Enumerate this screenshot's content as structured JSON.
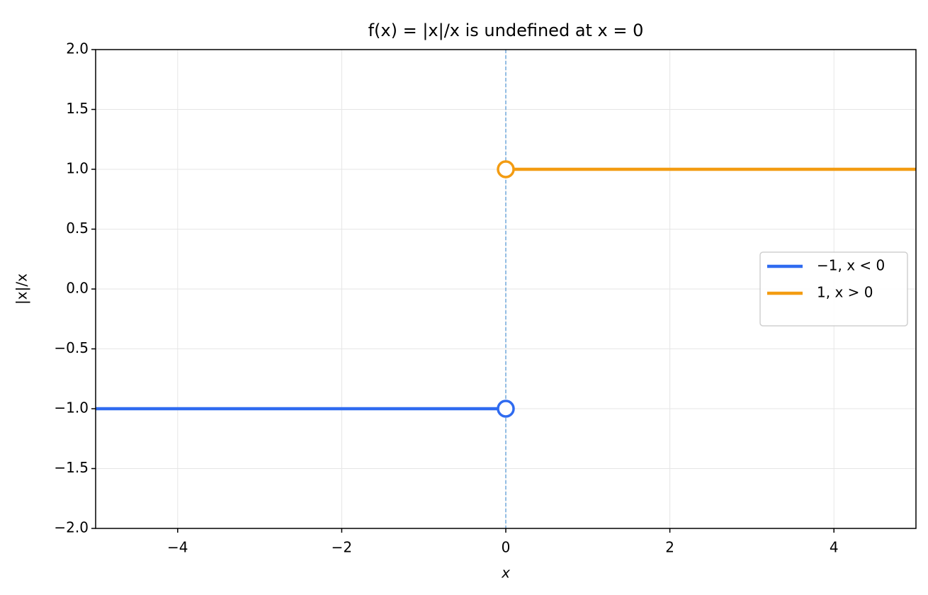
{
  "chart_data": {
    "type": "line",
    "title": "f(x) = |x|/x is undefined at x = 0",
    "x_label": "x",
    "y_label": "|x|/x",
    "series": [
      {
        "name": "−1,  x < 0",
        "color": "#2f6bf0",
        "x": [
          -5,
          0
        ],
        "values": [
          -1,
          -1
        ]
      },
      {
        "name": "1,  x > 0",
        "color": "#f39c12",
        "x": [
          0,
          5
        ],
        "values": [
          1,
          1
        ]
      }
    ],
    "open_points": [
      {
        "series": 0,
        "index": 1
      },
      {
        "series": 1,
        "index": 0
      }
    ],
    "vline": 0,
    "xlim": [
      -5,
      5
    ],
    "ylim": [
      -2,
      2
    ],
    "xticks": [
      {
        "value": -4,
        "label": "−4"
      },
      {
        "value": -2,
        "label": "−2"
      },
      0,
      2,
      4
    ],
    "yticks": [
      {
        "value": -2,
        "label": "−2.0"
      },
      {
        "value": -1.5,
        "label": "−1.5"
      },
      {
        "value": -1,
        "label": "−1.0"
      },
      {
        "value": -0.5,
        "label": "−0.5"
      },
      {
        "value": 0,
        "label": "0.0"
      },
      {
        "value": 0.5,
        "label": "0.5"
      },
      {
        "value": 1,
        "label": "1.0"
      },
      {
        "value": 1.5,
        "label": "1.5"
      },
      {
        "value": 2,
        "label": "2.0"
      }
    ],
    "grid": true,
    "legend": "center right"
  }
}
